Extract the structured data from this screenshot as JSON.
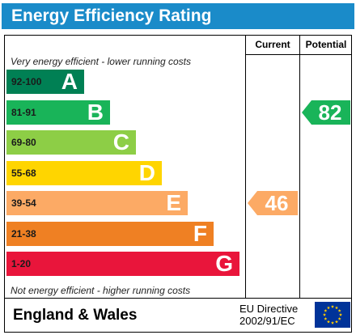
{
  "title": "Energy Efficiency Rating",
  "columns": {
    "current": "Current",
    "potential": "Potential"
  },
  "notes": {
    "top": "Very energy efficient - lower running costs",
    "bottom": "Not energy efficient - higher running costs"
  },
  "bands": [
    {
      "range": "92-100",
      "letter": "A",
      "color": "#008054"
    },
    {
      "range": "81-91",
      "letter": "B",
      "color": "#19b459"
    },
    {
      "range": "69-80",
      "letter": "C",
      "color": "#8dce46"
    },
    {
      "range": "55-68",
      "letter": "D",
      "color": "#ffd500"
    },
    {
      "range": "39-54",
      "letter": "E",
      "color": "#fcaa65"
    },
    {
      "range": "21-38",
      "letter": "F",
      "color": "#ef8023"
    },
    {
      "range": "1-20",
      "letter": "G",
      "color": "#e9153b"
    }
  ],
  "ratings": {
    "current": {
      "value": "46",
      "band": "E",
      "color": "#fcaa65"
    },
    "potential": {
      "value": "82",
      "band": "B",
      "color": "#19b459"
    }
  },
  "footer": {
    "region": "England & Wales",
    "directive_line1": "EU Directive",
    "directive_line2": "2002/91/EC"
  },
  "flag": {
    "background": "#003399",
    "stars": "#ffcc00"
  }
}
